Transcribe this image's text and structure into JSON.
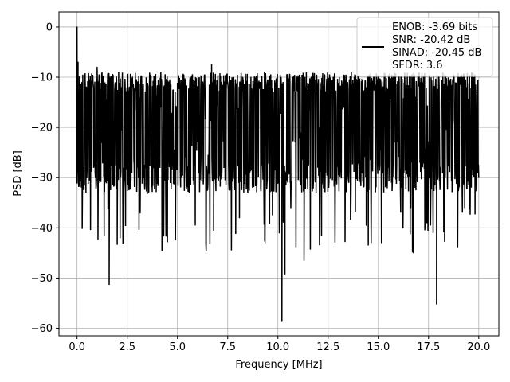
{
  "chart_data": {
    "type": "line",
    "title": "",
    "xlabel": "Frequency [MHz]",
    "ylabel": "PSD [dB]",
    "xlim": [
      -0.9,
      21.0
    ],
    "ylim": [
      -61.5,
      3.0
    ],
    "x_ticks": [
      0.0,
      2.5,
      5.0,
      7.5,
      10.0,
      12.5,
      15.0,
      17.5,
      20.0
    ],
    "x_tick_labels": [
      "0.0",
      "2.5",
      "5.0",
      "7.5",
      "10.0",
      "12.5",
      "15.0",
      "17.5",
      "20.0"
    ],
    "y_ticks": [
      0,
      -10,
      -20,
      -30,
      -40,
      -50,
      -60
    ],
    "y_tick_labels": [
      "0",
      "−10",
      "−20",
      "−30",
      "−40",
      "−50",
      "−60"
    ],
    "grid": true,
    "legend_position": "top-right",
    "line_color": "#000000",
    "series": [
      {
        "legend_lines": [
          "ENOB: -3.69 bits",
          "SNR: -20.42 dB",
          "SINAD: -20.45 dB",
          "SFDR: 3.6"
        ],
        "x_range": [
          0.0,
          20.0
        ],
        "noise_band": {
          "upper_typical": -11,
          "lower_typical": -30
        },
        "peaks": [
          {
            "x": 0.0,
            "y": 0.0
          },
          {
            "x": 0.05,
            "y": -7
          },
          {
            "x": 6.7,
            "y": -7.5
          },
          {
            "x": 1.0,
            "y": -8
          }
        ],
        "dips": [
          {
            "x": 1.6,
            "y": -51.3
          },
          {
            "x": 2.0,
            "y": -43.3
          },
          {
            "x": 1.35,
            "y": -41.5
          },
          {
            "x": 4.5,
            "y": -42.8
          },
          {
            "x": 10.2,
            "y": -58.5
          },
          {
            "x": 10.35,
            "y": -49.2
          },
          {
            "x": 11.3,
            "y": -46.5
          },
          {
            "x": 16.75,
            "y": -45.0
          },
          {
            "x": 17.9,
            "y": -55.2
          },
          {
            "x": 18.95,
            "y": -43.8
          },
          {
            "x": 14.4,
            "y": -39.5
          },
          {
            "x": 6.8,
            "y": -40.5
          }
        ]
      }
    ]
  }
}
